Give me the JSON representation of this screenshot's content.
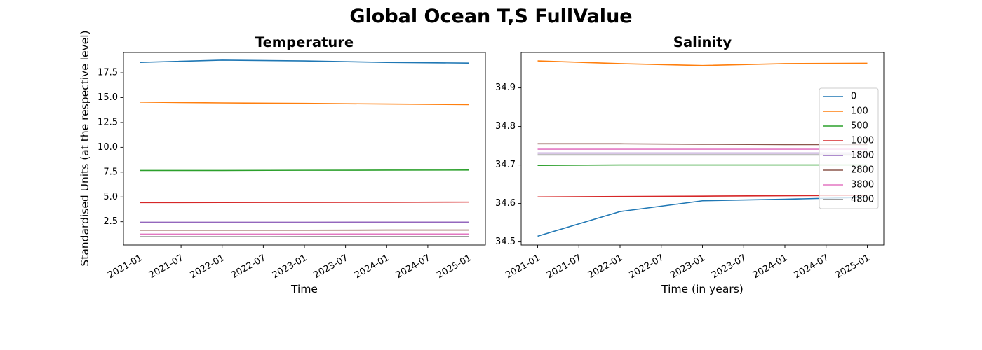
{
  "figure": {
    "title": "Global Ocean T,S FullValue"
  },
  "chart_data": [
    {
      "type": "line",
      "title": "Temperature",
      "xlabel": "Time",
      "ylabel": "Standardised Units (at the respective level)",
      "x": [
        "2021-01",
        "2022-01",
        "2023-01",
        "2024-01",
        "2025-01"
      ],
      "xticks": [
        "2021-01",
        "2021-07",
        "2022-01",
        "2022-07",
        "2023-01",
        "2023-07",
        "2024-01",
        "2024-07",
        "2025-01"
      ],
      "yticks": [
        "2.5",
        "5.0",
        "7.5",
        "10.0",
        "12.5",
        "15.0",
        "17.5"
      ],
      "ylim": [
        0.15,
        19.55
      ],
      "series": [
        {
          "name": "0",
          "color": "#1f77b4",
          "values": [
            18.55,
            18.78,
            18.7,
            18.55,
            18.48
          ]
        },
        {
          "name": "100",
          "color": "#ff7f0e",
          "values": [
            14.55,
            14.47,
            14.42,
            14.36,
            14.3
          ]
        },
        {
          "name": "500",
          "color": "#2ca02c",
          "values": [
            7.67,
            7.67,
            7.69,
            7.7,
            7.71
          ]
        },
        {
          "name": "1000",
          "color": "#d62728",
          "values": [
            4.43,
            4.44,
            4.45,
            4.46,
            4.48
          ]
        },
        {
          "name": "1800",
          "color": "#9467bd",
          "values": [
            2.45,
            2.45,
            2.45,
            2.46,
            2.46
          ]
        },
        {
          "name": "2800",
          "color": "#8c564b",
          "values": [
            1.65,
            1.65,
            1.65,
            1.66,
            1.66
          ]
        },
        {
          "name": "3800",
          "color": "#e377c2",
          "values": [
            1.25,
            1.25,
            1.25,
            1.26,
            1.26
          ]
        },
        {
          "name": "4800",
          "color": "#7f7f7f",
          "values": [
            0.98,
            0.98,
            0.99,
            0.99,
            0.99
          ]
        }
      ]
    },
    {
      "type": "line",
      "title": "Salinity",
      "xlabel": "Time (in years)",
      "ylabel": "",
      "x": [
        "2021-01",
        "2022-01",
        "2023-01",
        "2024-01",
        "2025-01"
      ],
      "xticks": [
        "2021-01",
        "2021-07",
        "2022-01",
        "2022-07",
        "2023-01",
        "2023-07",
        "2024-01",
        "2024-07",
        "2025-01"
      ],
      "yticks": [
        "34.5",
        "34.6",
        "34.7",
        "34.8",
        "34.9"
      ],
      "ylim": [
        34.492,
        34.992
      ],
      "legend": {
        "placement": "right",
        "labels": [
          "0",
          "100",
          "500",
          "1000",
          "1800",
          "2800",
          "3800",
          "4800"
        ]
      },
      "series": [
        {
          "name": "0",
          "color": "#1f77b4",
          "values": [
            34.515,
            34.579,
            34.607,
            34.611,
            34.616
          ]
        },
        {
          "name": "100",
          "color": "#ff7f0e",
          "values": [
            34.97,
            34.963,
            34.958,
            34.963,
            34.964
          ]
        },
        {
          "name": "500",
          "color": "#2ca02c",
          "values": [
            34.699,
            34.7,
            34.7,
            34.7,
            34.7
          ]
        },
        {
          "name": "1000",
          "color": "#d62728",
          "values": [
            34.617,
            34.618,
            34.619,
            34.62,
            34.621
          ]
        },
        {
          "name": "1800",
          "color": "#9467bd",
          "values": [
            34.731,
            34.731,
            34.731,
            34.731,
            34.731
          ]
        },
        {
          "name": "2800",
          "color": "#8c564b",
          "values": [
            34.755,
            34.755,
            34.754,
            34.753,
            34.753
          ]
        },
        {
          "name": "3800",
          "color": "#e377c2",
          "values": [
            34.741,
            34.741,
            34.741,
            34.741,
            34.741
          ]
        },
        {
          "name": "4800",
          "color": "#7f7f7f",
          "values": [
            34.726,
            34.726,
            34.726,
            34.726,
            34.726
          ]
        }
      ]
    }
  ]
}
